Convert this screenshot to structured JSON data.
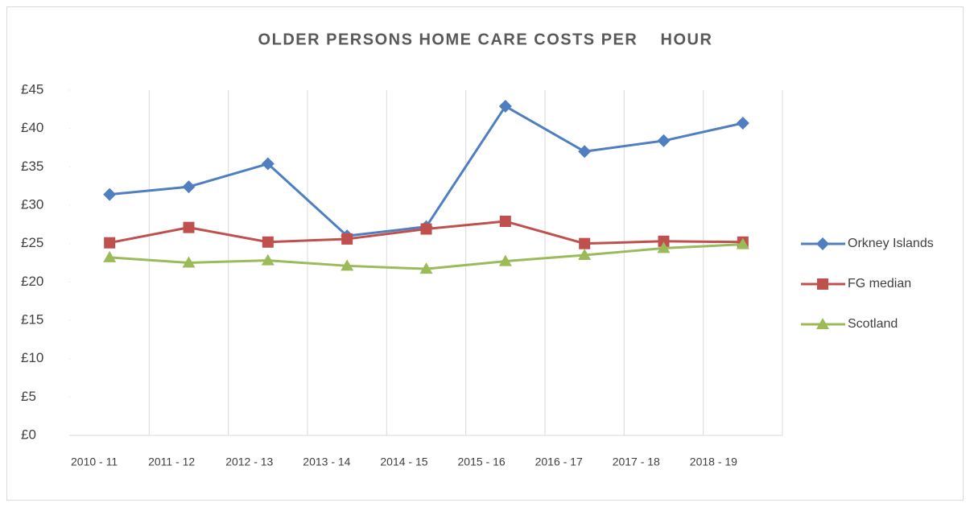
{
  "chart_data": {
    "type": "line",
    "title": "OLDER PERSONS HOME CARE COSTS PER    HOUR",
    "categories": [
      "2010 - 11",
      "2011 - 12",
      "2012 - 13",
      "2013 - 14",
      "2014 - 15",
      "2015 - 16",
      "2016 - 17",
      "2017 - 18",
      "2018 - 19"
    ],
    "series": [
      {
        "name": "Orkney Islands",
        "color": "#4f7fc0",
        "marker": "diamond",
        "values": [
          31.4,
          32.4,
          35.4,
          26.0,
          27.2,
          42.9,
          37.0,
          38.4,
          40.7
        ]
      },
      {
        "name": "FG median",
        "color": "#c0504d",
        "marker": "square",
        "values": [
          25.1,
          27.1,
          25.2,
          25.6,
          26.9,
          27.9,
          25.0,
          25.3,
          25.2
        ]
      },
      {
        "name": "Scotland",
        "color": "#9bbb59",
        "marker": "triangle",
        "values": [
          23.2,
          22.5,
          22.8,
          22.1,
          21.7,
          22.7,
          23.5,
          24.4,
          24.9
        ]
      }
    ],
    "ylim": [
      0,
      45
    ],
    "yticks": [
      {
        "value": 0,
        "label": "£0"
      },
      {
        "value": 5,
        "label": "£5"
      },
      {
        "value": 10,
        "label": "£10"
      },
      {
        "value": 15,
        "label": "£15"
      },
      {
        "value": 20,
        "label": "£20"
      },
      {
        "value": 25,
        "label": "£25"
      },
      {
        "value": 30,
        "label": "£30"
      },
      {
        "value": 35,
        "label": "£35"
      },
      {
        "value": 40,
        "label": "£40"
      },
      {
        "value": 45,
        "label": "£45"
      }
    ],
    "grid": "x",
    "legend": "right"
  }
}
